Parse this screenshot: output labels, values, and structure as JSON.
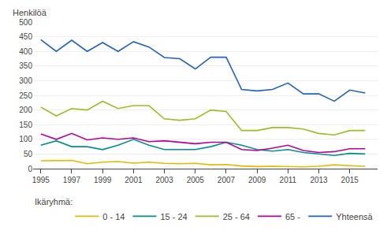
{
  "chart_data": {
    "type": "line",
    "ylabel": "Henkilöä",
    "legend_title": "Ikäryhmä:",
    "legend": "bottom",
    "grid": "y",
    "x": [
      1995,
      1996,
      1997,
      1998,
      1999,
      2000,
      2001,
      2002,
      2003,
      2004,
      2005,
      2006,
      2007,
      2008,
      2009,
      2010,
      2011,
      2012,
      2013,
      2014,
      2015,
      2016
    ],
    "series": [
      {
        "name": "0 - 14",
        "color": "#e8b800",
        "values": [
          27,
          28,
          28,
          17,
          22,
          24,
          19,
          22,
          18,
          17,
          18,
          13,
          14,
          9,
          7,
          8,
          7,
          6,
          8,
          13,
          10,
          8
        ]
      },
      {
        "name": "15 - 24",
        "color": "#009090",
        "values": [
          80,
          95,
          75,
          75,
          65,
          80,
          100,
          80,
          65,
          65,
          65,
          75,
          90,
          80,
          65,
          60,
          65,
          55,
          50,
          45,
          52,
          50
        ]
      },
      {
        "name": "25 - 64",
        "color": "#9abf20",
        "values": [
          210,
          180,
          205,
          200,
          230,
          205,
          215,
          215,
          170,
          165,
          170,
          200,
          195,
          130,
          130,
          140,
          140,
          135,
          120,
          115,
          130,
          130
        ]
      },
      {
        "name": "65 -",
        "color": "#b8009a",
        "values": [
          118,
          100,
          120,
          98,
          105,
          100,
          105,
          92,
          95,
          90,
          85,
          90,
          90,
          65,
          62,
          70,
          80,
          62,
          55,
          58,
          68,
          68
        ]
      },
      {
        "name": "Yhteensä",
        "color": "#2060c8",
        "values": [
          440,
          400,
          438,
          400,
          430,
          400,
          433,
          415,
          379,
          375,
          340,
          380,
          380,
          270,
          265,
          270,
          292,
          255,
          255,
          230,
          268,
          258
        ]
      }
    ],
    "xlim": [
      1994.5,
      2016.8
    ],
    "xticks": [
      1995,
      1997,
      1999,
      2001,
      2003,
      2005,
      2007,
      2009,
      2011,
      2013,
      2015
    ],
    "ylim": [
      0,
      500
    ],
    "yticks": [
      0,
      50,
      100,
      150,
      200,
      250,
      300,
      350,
      400,
      450,
      500
    ]
  }
}
